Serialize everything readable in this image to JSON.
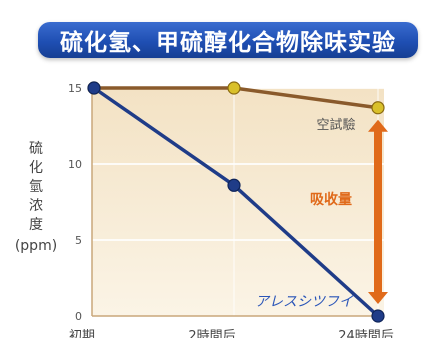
{
  "title": "硫化氢、甲硫醇化合物除味实验",
  "ylabel_chars": [
    "硫",
    "化",
    "氫",
    "浓",
    "度"
  ],
  "ylabel_unit": "(ppm)",
  "product_label": "アレスシツフイ",
  "blank_label": "空試驗",
  "absorption_label": "吸收量",
  "colors": {
    "banner": "#1f4fb3",
    "blank_line": "#8a5a2b",
    "blank_marker": "#d9c02a",
    "product_line": "#1f3c88",
    "arrow": "#e06a1a",
    "plot_bg_top": "#f3e2c4",
    "plot_bg_bottom": "#fbf4e6"
  },
  "chart_data": {
    "type": "line",
    "title": "硫化氢、甲硫醇化合物除味实验",
    "xlabel": "",
    "ylabel": "硫化氫浓度 (ppm)",
    "categories": [
      "初期",
      "2時間后",
      "24時間后"
    ],
    "yticks": [
      0,
      5,
      10,
      15
    ],
    "ylim": [
      0,
      15
    ],
    "grid": true,
    "series": [
      {
        "name": "空試驗",
        "values": [
          15,
          15,
          13.7
        ]
      },
      {
        "name": "アレスシツフイ",
        "values": [
          15,
          8.6,
          0
        ]
      }
    ]
  }
}
